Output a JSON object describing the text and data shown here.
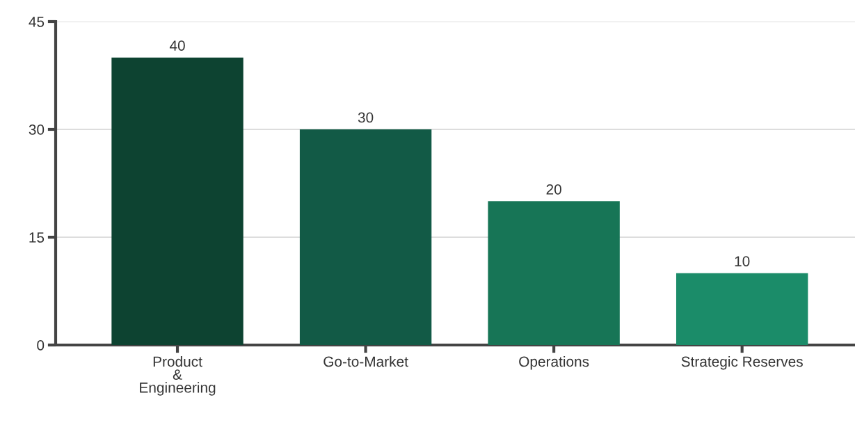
{
  "chart_data": {
    "type": "bar",
    "categories": [
      "Product & Engineering",
      "Go-to-Market",
      "Operations",
      "Strategic Reserves"
    ],
    "values": [
      40,
      30,
      20,
      10
    ],
    "colors": [
      "#0d4331",
      "#125a46",
      "#177556",
      "#1b8c69"
    ],
    "ylim": [
      0,
      45
    ],
    "yticks": [
      0,
      15,
      30,
      45
    ],
    "grid": "y",
    "data_labels": true,
    "legend": false
  }
}
